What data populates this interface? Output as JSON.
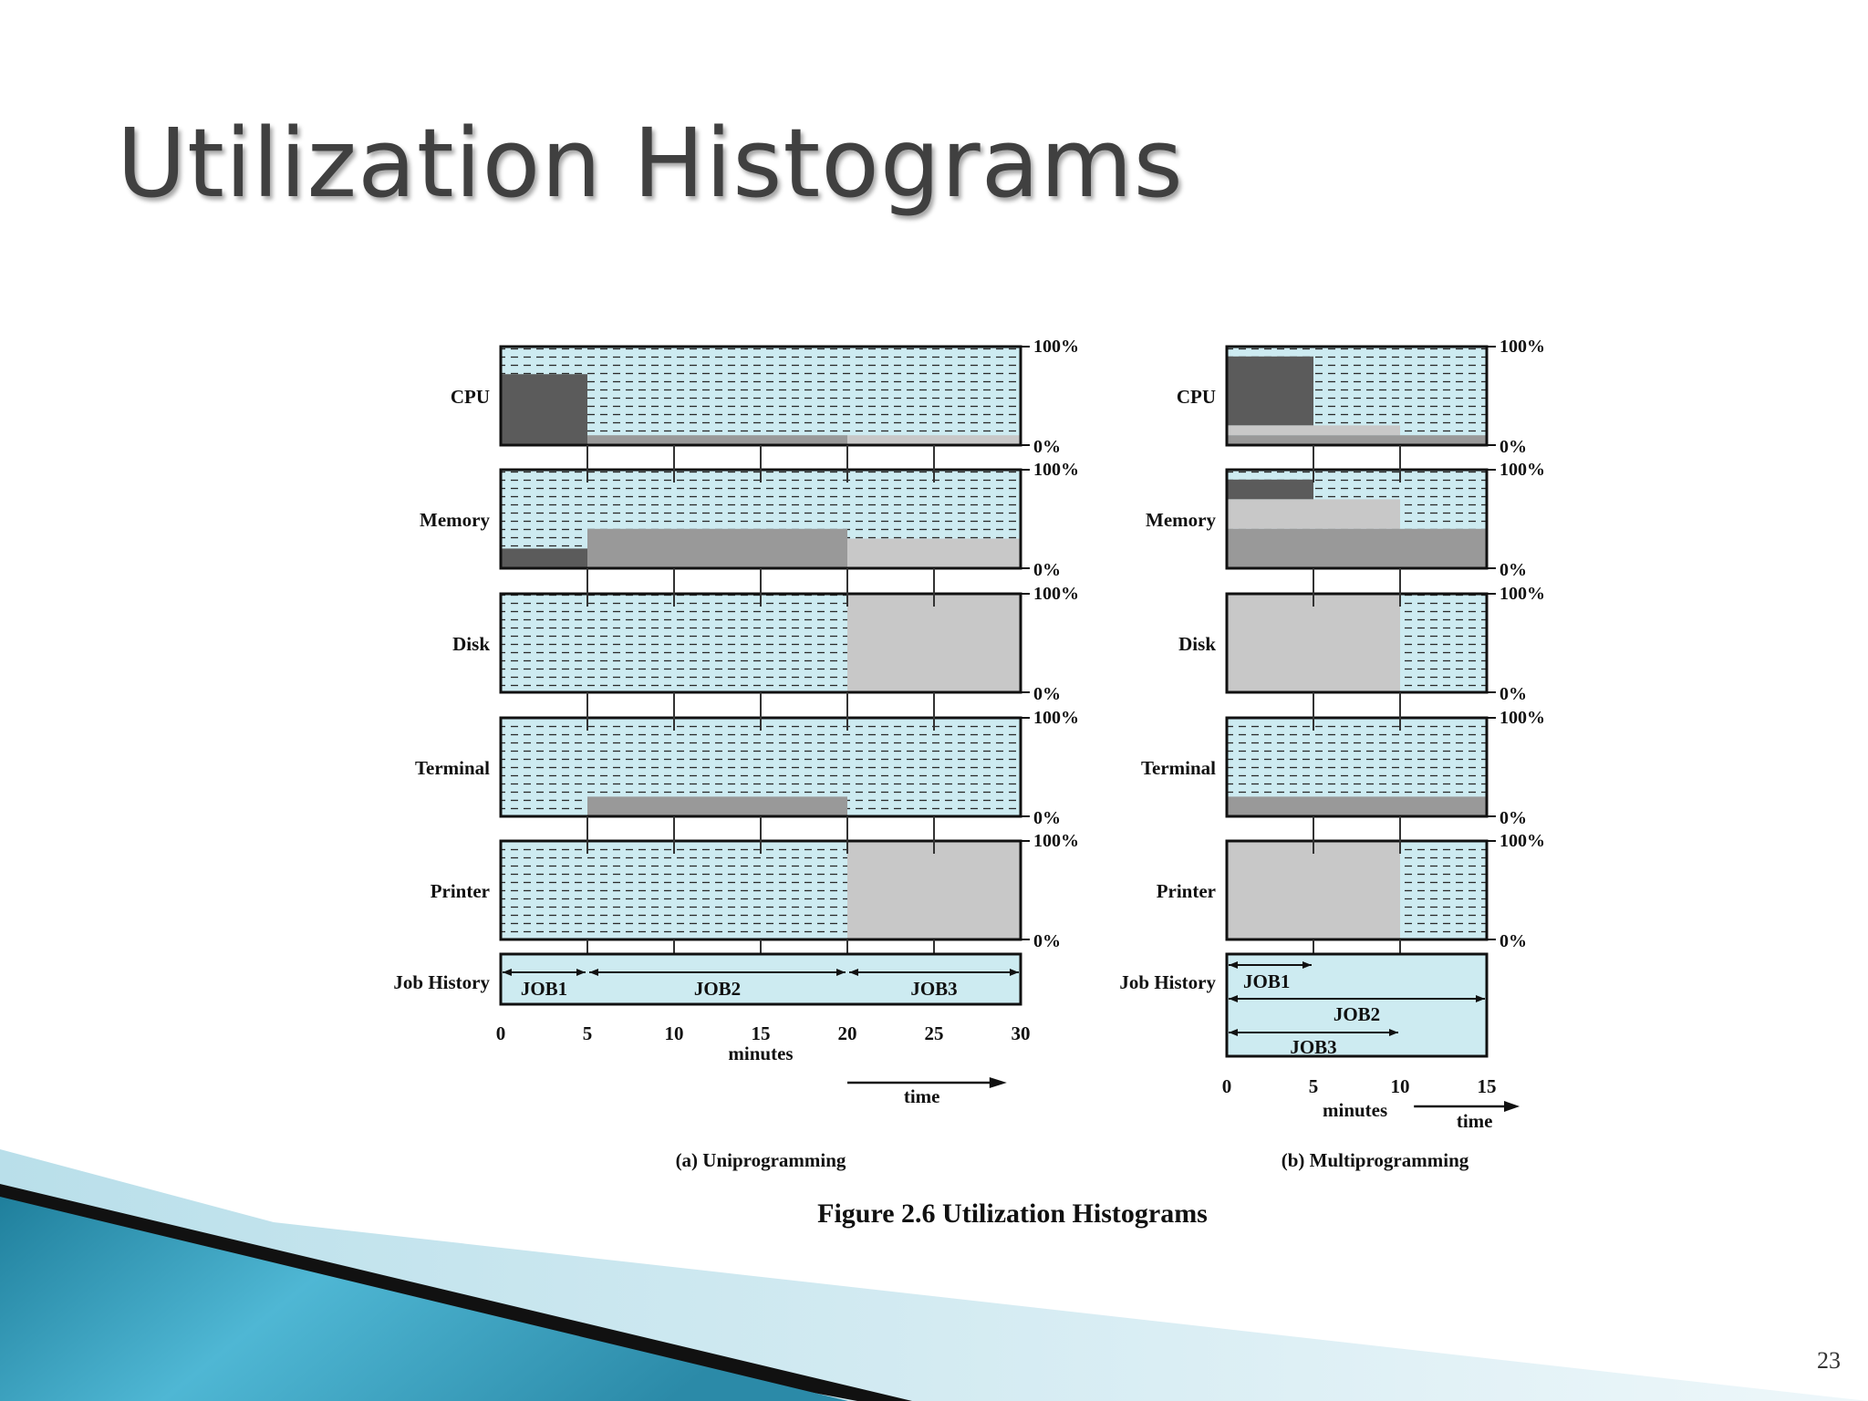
{
  "slide": {
    "title": "Utilization Histograms",
    "page_number": "23"
  },
  "chart_data": {
    "type": "area",
    "figure_caption": "Figure 2.6  Utilization Histograms",
    "resources": [
      "CPU",
      "Memory",
      "Disk",
      "Terminal",
      "Printer"
    ],
    "job_history_label": "Job History",
    "y_top_label": "100%",
    "y_bottom_label": "0%",
    "ylim": [
      0,
      100
    ],
    "colors": {
      "background": "#cdebf1",
      "job1": "#5b5b5b",
      "job2": "#999999",
      "job3": "#c8c8c8",
      "grid": "#2a2a2a"
    },
    "panels": [
      {
        "caption": "(a) Uniprogramming",
        "xlim": [
          0,
          30
        ],
        "xticks": [
          "0",
          "5",
          "10",
          "15",
          "20",
          "25",
          "30"
        ],
        "xlabel": "minutes",
        "time_label": "time",
        "segments": {
          "CPU": [
            {
              "job": "JOB1",
              "start": 0,
              "end": 5,
              "from": 0,
              "to": 72
            },
            {
              "job": "JOB2",
              "start": 5,
              "end": 20,
              "from": 0,
              "to": 10
            },
            {
              "job": "JOB3",
              "start": 20,
              "end": 30,
              "from": 0,
              "to": 10
            }
          ],
          "Memory": [
            {
              "job": "JOB1",
              "start": 0,
              "end": 5,
              "from": 0,
              "to": 20
            },
            {
              "job": "JOB2",
              "start": 5,
              "end": 20,
              "from": 0,
              "to": 40
            },
            {
              "job": "JOB3",
              "start": 20,
              "end": 30,
              "from": 0,
              "to": 30
            }
          ],
          "Disk": [
            {
              "job": "JOB3",
              "start": 20,
              "end": 30,
              "from": 0,
              "to": 100
            }
          ],
          "Terminal": [
            {
              "job": "JOB2",
              "start": 5,
              "end": 20,
              "from": 0,
              "to": 20
            }
          ],
          "Printer": [
            {
              "job": "JOB3",
              "start": 20,
              "end": 30,
              "from": 0,
              "to": 100
            }
          ]
        },
        "jobs": [
          {
            "name": "JOB1",
            "start": 0,
            "end": 5
          },
          {
            "name": "JOB2",
            "start": 5,
            "end": 20
          },
          {
            "name": "JOB3",
            "start": 20,
            "end": 30
          }
        ]
      },
      {
        "caption": "(b) Multiprogramming",
        "xlim": [
          0,
          15
        ],
        "xticks": [
          "0",
          "5",
          "10",
          "15"
        ],
        "xlabel": "minutes",
        "time_label": "time",
        "segments": {
          "CPU": [
            {
              "job": "JOB1",
              "start": 0,
              "end": 5,
              "from": 20,
              "to": 90
            },
            {
              "job": "JOB3",
              "start": 0,
              "end": 10,
              "from": 10,
              "to": 20
            },
            {
              "job": "JOB2",
              "start": 0,
              "end": 15,
              "from": 0,
              "to": 10
            }
          ],
          "Memory": [
            {
              "job": "JOB1",
              "start": 0,
              "end": 5,
              "from": 70,
              "to": 90
            },
            {
              "job": "JOB3",
              "start": 0,
              "end": 10,
              "from": 40,
              "to": 70
            },
            {
              "job": "JOB2",
              "start": 0,
              "end": 15,
              "from": 0,
              "to": 40
            }
          ],
          "Disk": [
            {
              "job": "JOB3",
              "start": 0,
              "end": 10,
              "from": 0,
              "to": 100
            }
          ],
          "Terminal": [
            {
              "job": "JOB2",
              "start": 0,
              "end": 15,
              "from": 0,
              "to": 20
            }
          ],
          "Printer": [
            {
              "job": "JOB3",
              "start": 0,
              "end": 10,
              "from": 0,
              "to": 100
            }
          ]
        },
        "jobs": [
          {
            "name": "JOB1",
            "start": 0,
            "end": 5
          },
          {
            "name": "JOB2",
            "start": 0,
            "end": 15
          },
          {
            "name": "JOB3",
            "start": 0,
            "end": 10
          }
        ]
      }
    ]
  }
}
